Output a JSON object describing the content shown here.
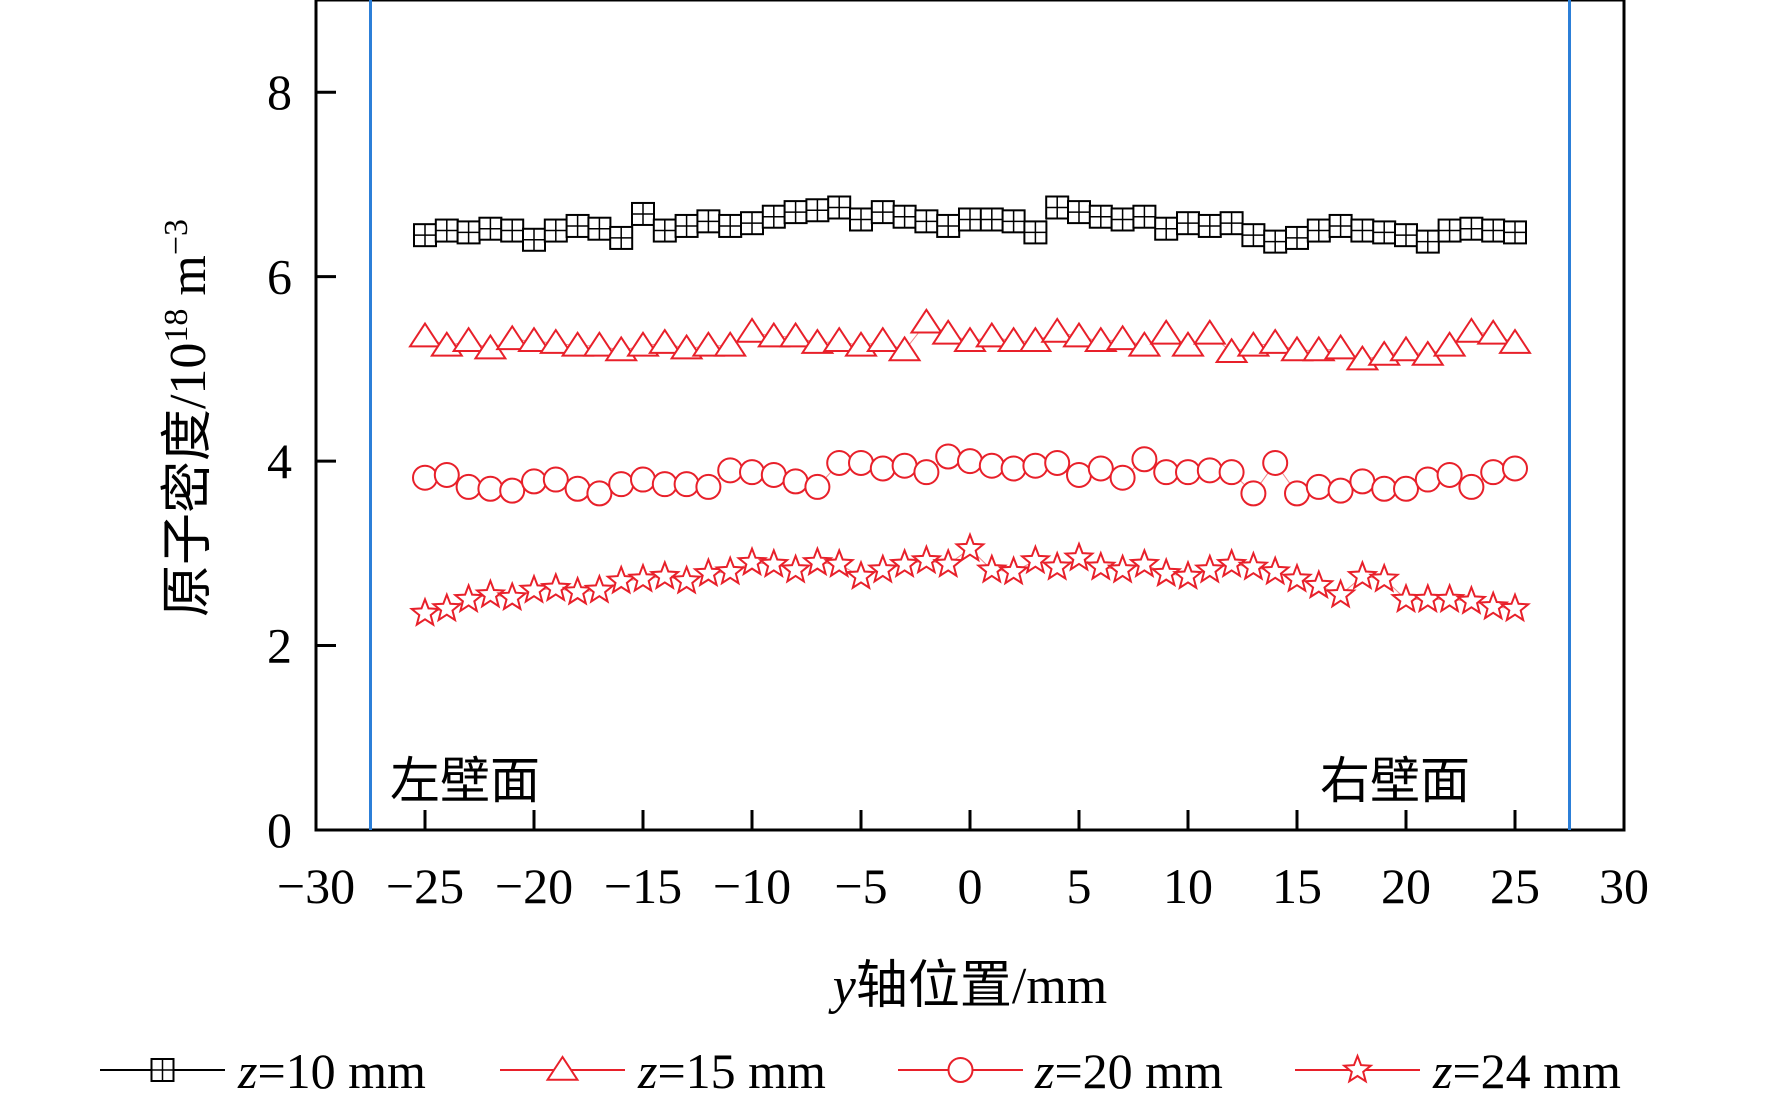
{
  "chart_data": {
    "type": "scatter",
    "title": "",
    "xlabel_italic": "y",
    "xlabel_rest": "轴位置/mm",
    "ylabel_main": "原子密度/10",
    "ylabel_exp": "18",
    "ylabel_unit": " m",
    "ylabel_unit_exp": "−3",
    "xlim": [
      -30,
      30
    ],
    "ylim": [
      0,
      9
    ],
    "xticks": [
      -30,
      -25,
      -20,
      -15,
      -10,
      -5,
      0,
      5,
      10,
      15,
      20,
      25,
      30
    ],
    "xtick_labels": [
      "−30",
      "−25",
      "−20",
      "−15",
      "−10",
      "−5",
      "0",
      "5",
      "10",
      "15",
      "20",
      "25",
      "30"
    ],
    "yticks": [
      0,
      2,
      4,
      6,
      8
    ],
    "ytick_labels": [
      "0",
      "2",
      "4",
      "6",
      "8"
    ],
    "grid": false,
    "legend_position": "bottom",
    "walls": [
      {
        "label": "左壁面",
        "x": -27.5
      },
      {
        "label": "右壁面",
        "x": 27.5
      }
    ],
    "wall_color": "#2c7fd8",
    "x": [
      -25,
      -24,
      -23,
      -22,
      -21,
      -20,
      -19,
      -18,
      -17,
      -16,
      -15,
      -14,
      -13,
      -12,
      -11,
      -10,
      -9,
      -8,
      -7,
      -6,
      -5,
      -4,
      -3,
      -2,
      -1,
      0,
      1,
      2,
      3,
      4,
      5,
      6,
      7,
      8,
      9,
      10,
      11,
      12,
      13,
      14,
      15,
      16,
      17,
      18,
      19,
      20,
      21,
      22,
      23,
      24,
      25
    ],
    "series": [
      {
        "legend_italic": "z",
        "legend_rest": "=10 mm",
        "marker": "square-plus",
        "color": "#000000",
        "values": [
          6.45,
          6.5,
          6.48,
          6.52,
          6.5,
          6.4,
          6.5,
          6.55,
          6.52,
          6.42,
          6.68,
          6.5,
          6.55,
          6.6,
          6.55,
          6.58,
          6.65,
          6.7,
          6.72,
          6.75,
          6.62,
          6.7,
          6.65,
          6.6,
          6.55,
          6.62,
          6.62,
          6.6,
          6.48,
          6.75,
          6.7,
          6.65,
          6.62,
          6.65,
          6.52,
          6.58,
          6.55,
          6.58,
          6.45,
          6.38,
          6.42,
          6.5,
          6.55,
          6.5,
          6.48,
          6.45,
          6.38,
          6.5,
          6.52,
          6.5,
          6.48
        ]
      },
      {
        "legend_italic": "z",
        "legend_rest": "=15 mm",
        "marker": "triangle",
        "color": "#e8202a",
        "values": [
          5.35,
          5.25,
          5.3,
          5.22,
          5.32,
          5.3,
          5.28,
          5.25,
          5.25,
          5.2,
          5.25,
          5.28,
          5.22,
          5.25,
          5.25,
          5.4,
          5.35,
          5.35,
          5.28,
          5.3,
          5.25,
          5.3,
          5.2,
          5.5,
          5.38,
          5.3,
          5.35,
          5.3,
          5.3,
          5.4,
          5.35,
          5.3,
          5.32,
          5.25,
          5.38,
          5.25,
          5.38,
          5.18,
          5.25,
          5.28,
          5.2,
          5.2,
          5.22,
          5.1,
          5.15,
          5.2,
          5.15,
          5.25,
          5.4,
          5.38,
          5.28
        ]
      },
      {
        "legend_italic": "z",
        "legend_rest": "=20 mm",
        "marker": "circle",
        "color": "#e8202a",
        "values": [
          3.82,
          3.85,
          3.72,
          3.7,
          3.68,
          3.78,
          3.8,
          3.7,
          3.65,
          3.75,
          3.8,
          3.75,
          3.75,
          3.72,
          3.9,
          3.88,
          3.85,
          3.78,
          3.72,
          3.98,
          3.98,
          3.92,
          3.95,
          3.88,
          4.05,
          4.0,
          3.95,
          3.92,
          3.95,
          3.98,
          3.85,
          3.92,
          3.82,
          4.02,
          3.88,
          3.88,
          3.9,
          3.88,
          3.65,
          3.98,
          3.65,
          3.72,
          3.68,
          3.78,
          3.7,
          3.7,
          3.8,
          3.85,
          3.72,
          3.88,
          3.92
        ]
      },
      {
        "legend_italic": "z",
        "legend_rest": "=24 mm",
        "marker": "star",
        "color": "#e8202a",
        "values": [
          2.35,
          2.4,
          2.5,
          2.55,
          2.52,
          2.6,
          2.62,
          2.58,
          2.6,
          2.7,
          2.72,
          2.75,
          2.7,
          2.78,
          2.8,
          2.9,
          2.88,
          2.82,
          2.9,
          2.88,
          2.75,
          2.82,
          2.88,
          2.92,
          2.88,
          3.05,
          2.82,
          2.8,
          2.92,
          2.85,
          2.95,
          2.85,
          2.82,
          2.88,
          2.78,
          2.75,
          2.82,
          2.88,
          2.85,
          2.8,
          2.72,
          2.65,
          2.55,
          2.75,
          2.72,
          2.5,
          2.5,
          2.5,
          2.48,
          2.42,
          2.4
        ]
      }
    ]
  }
}
